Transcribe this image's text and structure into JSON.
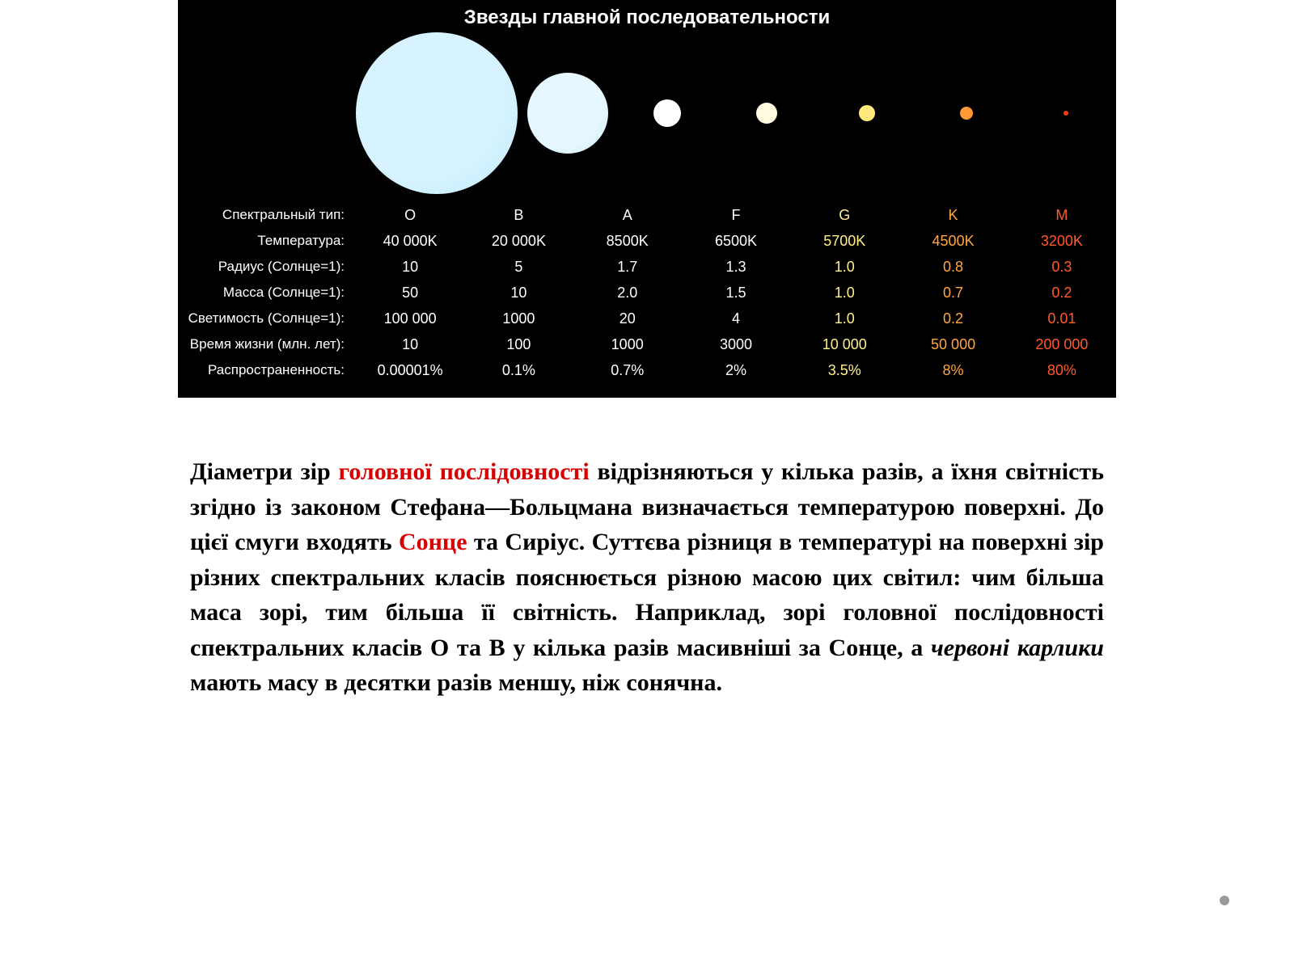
{
  "chart": {
    "title": "Звезды главной последовательности",
    "background": "#000000",
    "labelColor": "#ffffff",
    "rowLabels": [
      "Спектральный тип:",
      "Температура:",
      "Радиус (Солнце=1):",
      "Масса (Солнце=1):",
      "Светимость (Солнце=1):",
      "Время жизни (млн. лет):",
      "Распространенность:"
    ],
    "stars": [
      {
        "diameter": 200,
        "fill": "#d6f3ff",
        "glow": "#bfeaff"
      },
      {
        "diameter": 100,
        "fill": "#e6f7ff",
        "glow": "#d0eefc"
      },
      {
        "diameter": 34,
        "fill": "#ffffff",
        "glow": "#ffffff"
      },
      {
        "diameter": 26,
        "fill": "#fffbe0",
        "glow": "#fff7c8"
      },
      {
        "diameter": 20,
        "fill": "#ffe97a",
        "glow": "#ffe060"
      },
      {
        "diameter": 16,
        "fill": "#ff9a33",
        "glow": "#ff8a20"
      },
      {
        "diameter": 6,
        "fill": "#ff3a10",
        "glow": "#d82800"
      }
    ],
    "columnColors": [
      "#ffffff",
      "#ffffff",
      "#ffffff",
      "#ffffff",
      "#fff08a",
      "#ffa645",
      "#ff5a2a"
    ],
    "rows": [
      [
        "O",
        "B",
        "A",
        "F",
        "G",
        "K",
        "M"
      ],
      [
        "40 000K",
        "20 000K",
        "8500K",
        "6500K",
        "5700K",
        "4500K",
        "3200K"
      ],
      [
        "10",
        "5",
        "1.7",
        "1.3",
        "1.0",
        "0.8",
        "0.3"
      ],
      [
        "50",
        "10",
        "2.0",
        "1.5",
        "1.0",
        "0.7",
        "0.2"
      ],
      [
        "100 000",
        "1000",
        "20",
        "4",
        "1.0",
        "0.2",
        "0.01"
      ],
      [
        "10",
        "100",
        "1000",
        "3000",
        "10 000",
        "50 000",
        "200 000"
      ],
      [
        "0.00001%",
        "0.1%",
        "0.7%",
        "2%",
        "3.5%",
        "8%",
        "80%"
      ]
    ]
  },
  "paragraph": {
    "text1a": "Діаметри зір ",
    "hl1": "головної послідовності",
    "text1b": " відрізняються у кілька разів, а їхня світність згідно із законом Стефана—Больцмана визначається температурою поверхні. До цієї смуги входять ",
    "hl2": "Сонце",
    "text1c": " та Сиріус. Суттєва різниця в температурі на поверхні зір різних спектральних класів пояснюється різною масою цих світил: чим більша маса зорі, тим більша її світність. Наприклад, зорі головної послідовності спектральних класів О та В у кілька разів масивніші за Сонце, а ",
    "it1": "червоні карлики",
    "text1d": " мають масу в десятки разів меншу, ніж сонячна."
  }
}
